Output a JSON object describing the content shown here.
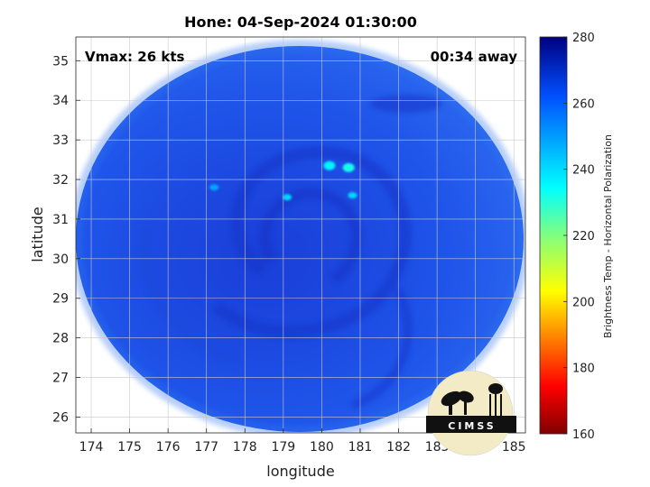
{
  "chart_data": {
    "type": "heatmap",
    "title": "Hone: 04-Sep-2024 01:30:00",
    "annotations": {
      "vmax": "Vmax: 26 kts",
      "time_away": "00:34 away"
    },
    "xlabel": "longitude",
    "ylabel": "latitude",
    "xlim": [
      173.6,
      185.3
    ],
    "ylim": [
      25.6,
      35.6
    ],
    "xticks": [
      174,
      175,
      176,
      177,
      178,
      179,
      180,
      181,
      182,
      183,
      184,
      185
    ],
    "yticks": [
      26,
      27,
      28,
      29,
      30,
      31,
      32,
      33,
      34,
      35
    ],
    "grid": true,
    "colorbar": {
      "label": "Brightness Temp - Horizontal Polarization",
      "range": [
        160,
        280
      ],
      "ticks": [
        160,
        180,
        200,
        220,
        240,
        260,
        280
      ]
    },
    "swath_center": {
      "lon": 179.4,
      "lat": 30.0
    },
    "dominant_value": 262,
    "warm_spots": [
      {
        "lon": 180.7,
        "lat": 32.3,
        "value": 232
      },
      {
        "lon": 180.2,
        "lat": 32.35,
        "value": 236
      },
      {
        "lon": 180.8,
        "lat": 31.6,
        "value": 240
      },
      {
        "lon": 179.1,
        "lat": 31.55,
        "value": 240
      },
      {
        "lon": 177.2,
        "lat": 31.8,
        "value": 248
      }
    ],
    "logo_text": "CIMSS"
  }
}
